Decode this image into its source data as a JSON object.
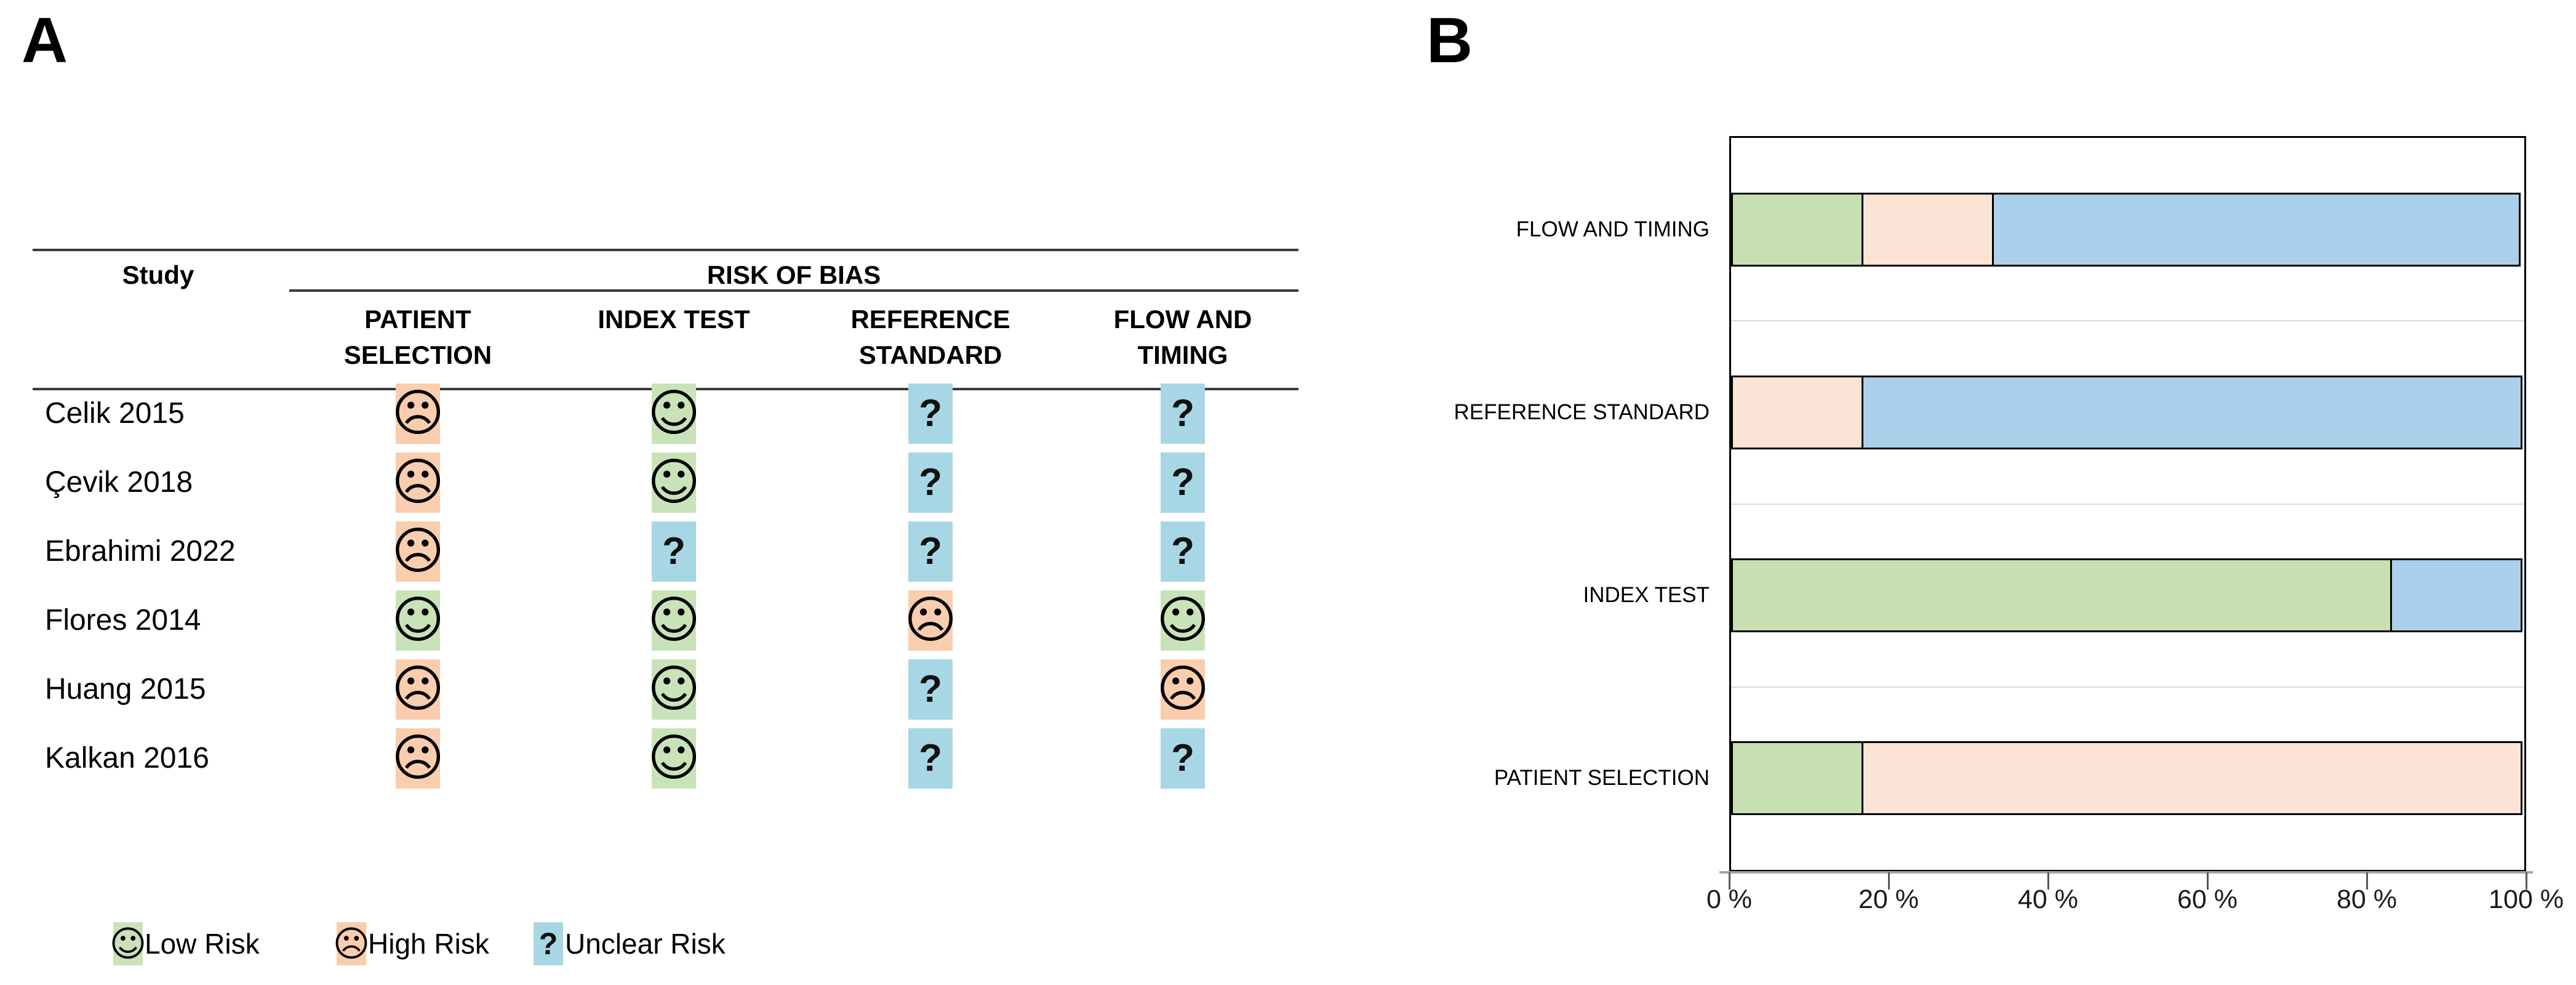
{
  "panel_a": {
    "label": "A",
    "table": {
      "study_header": "Study",
      "group_header": "RISK OF BIAS",
      "columns": [
        "PATIENT SELECTION",
        "INDEX TEST",
        "REFERENCE STANDARD",
        "FLOW AND TIMING"
      ],
      "rows": [
        {
          "study": "Celik 2015",
          "ratings": [
            "high",
            "low",
            "unclear",
            "unclear"
          ]
        },
        {
          "study": "Çevik 2018",
          "ratings": [
            "high",
            "low",
            "unclear",
            "unclear"
          ]
        },
        {
          "study": "Ebrahimi 2022",
          "ratings": [
            "high",
            "unclear",
            "unclear",
            "unclear"
          ]
        },
        {
          "study": "Flores 2014",
          "ratings": [
            "low",
            "low",
            "high",
            "low"
          ]
        },
        {
          "study": "Huang 2015",
          "ratings": [
            "high",
            "low",
            "unclear",
            "high"
          ]
        },
        {
          "study": "Kalkan 2016",
          "ratings": [
            "high",
            "low",
            "unclear",
            "unclear"
          ]
        }
      ]
    },
    "rating_styles": {
      "low": {
        "bg": "#c9e3b8",
        "glyph": "☺",
        "kind": "face"
      },
      "high": {
        "bg": "#f9cdad",
        "glyph": "☹",
        "kind": "face"
      },
      "unclear": {
        "bg": "#a7d7e4",
        "glyph": "?",
        "kind": "qmark"
      }
    },
    "legend": [
      {
        "key": "low",
        "label": "Low Risk"
      },
      {
        "key": "high",
        "label": "High Risk"
      },
      {
        "key": "unclear",
        "label": "Unclear Risk"
      }
    ]
  },
  "panel_b": {
    "label": "B"
  },
  "chart_data": {
    "type": "bar",
    "orientation": "horizontal",
    "stacked": true,
    "title": "",
    "xlabel": "",
    "ylabel": "",
    "categories": [
      "FLOW AND TIMING",
      "REFERENCE STANDARD",
      "INDEX TEST",
      "PATIENT SELECTION"
    ],
    "series": [
      {
        "name": "Low Risk",
        "color": "#c6e0b4",
        "values": [
          16.7,
          0,
          83.3,
          16.7
        ]
      },
      {
        "name": "High Risk",
        "color": "#fbe3d5",
        "values": [
          16.7,
          16.7,
          0,
          83.3
        ]
      },
      {
        "name": "Unclear Risk",
        "color": "#abd0eb",
        "values": [
          66.7,
          83.3,
          16.7,
          0
        ]
      }
    ],
    "xlim": [
      0,
      100
    ],
    "x_ticks": [
      "0 %",
      "20 %",
      "40 %",
      "60 %",
      "80 %",
      "100 %"
    ],
    "gridlines": true,
    "legend_position": "none"
  }
}
